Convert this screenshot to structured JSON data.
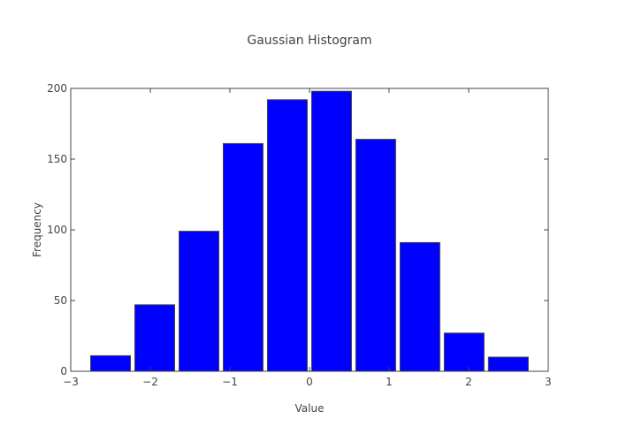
{
  "chart_data": {
    "type": "bar",
    "title": "Gaussian Histogram",
    "xlabel": "Value",
    "ylabel": "Frequency",
    "xlim": [
      -3,
      3
    ],
    "ylim": [
      0,
      200
    ],
    "x_ticks": [
      -3,
      -2,
      -1,
      0,
      1,
      2,
      3
    ],
    "x_tick_labels": [
      "−3",
      "−2",
      "−1",
      "0",
      "1",
      "2",
      "3"
    ],
    "y_ticks": [
      0,
      50,
      100,
      150,
      200
    ],
    "y_tick_labels": [
      "0",
      "50",
      "100",
      "150",
      "200"
    ],
    "bins": [
      {
        "x0": -2.7773,
        "x1": -2.222
      },
      {
        "x0": -2.222,
        "x1": -1.6667
      },
      {
        "x0": -1.6667,
        "x1": -1.1113
      },
      {
        "x0": -1.1113,
        "x1": -0.556
      },
      {
        "x0": -0.556,
        "x1": -0.0007
      },
      {
        "x0": -0.0007,
        "x1": 0.5547
      },
      {
        "x0": 0.5547,
        "x1": 1.11
      },
      {
        "x0": 1.11,
        "x1": 1.6653
      },
      {
        "x0": 1.6653,
        "x1": 2.2207
      },
      {
        "x0": 2.2207,
        "x1": 2.776
      }
    ],
    "values": [
      11,
      47,
      99,
      161,
      192,
      198,
      164,
      91,
      27,
      10
    ],
    "bar_color": "#0000ff",
    "bar_edge_color": "#444444",
    "grid": false
  }
}
